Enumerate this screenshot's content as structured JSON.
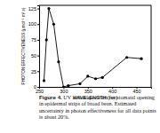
{
  "chart_data": {
    "type": "line",
    "caption_label": "Figure 4.",
    "caption": "UV action spectrum for stomatal opening in epidermal strips of broad bean. Estimated uncertainty in photon effectiveness for all data points is about 20%.",
    "x_label": "WAVELENGTH (nm)",
    "y_label": "PHOTON EFFECTIVENESS (μmol⁻¹ m² s)",
    "x": [
      260,
      265,
      270,
      280,
      290,
      300,
      310,
      334,
      350,
      366,
      380,
      430,
      460
    ],
    "values": [
      10,
      75,
      125,
      100,
      40,
      0,
      2,
      5,
      17,
      13,
      15,
      47,
      45
    ],
    "color": "#000000",
    "marker": "circle",
    "xlim": [
      250,
      480
    ],
    "xticks": [
      250,
      300,
      350,
      400,
      450
    ],
    "ylim": [
      0,
      130
    ],
    "yticks": [
      0,
      25,
      50,
      75,
      100,
      125
    ],
    "grid": false
  }
}
